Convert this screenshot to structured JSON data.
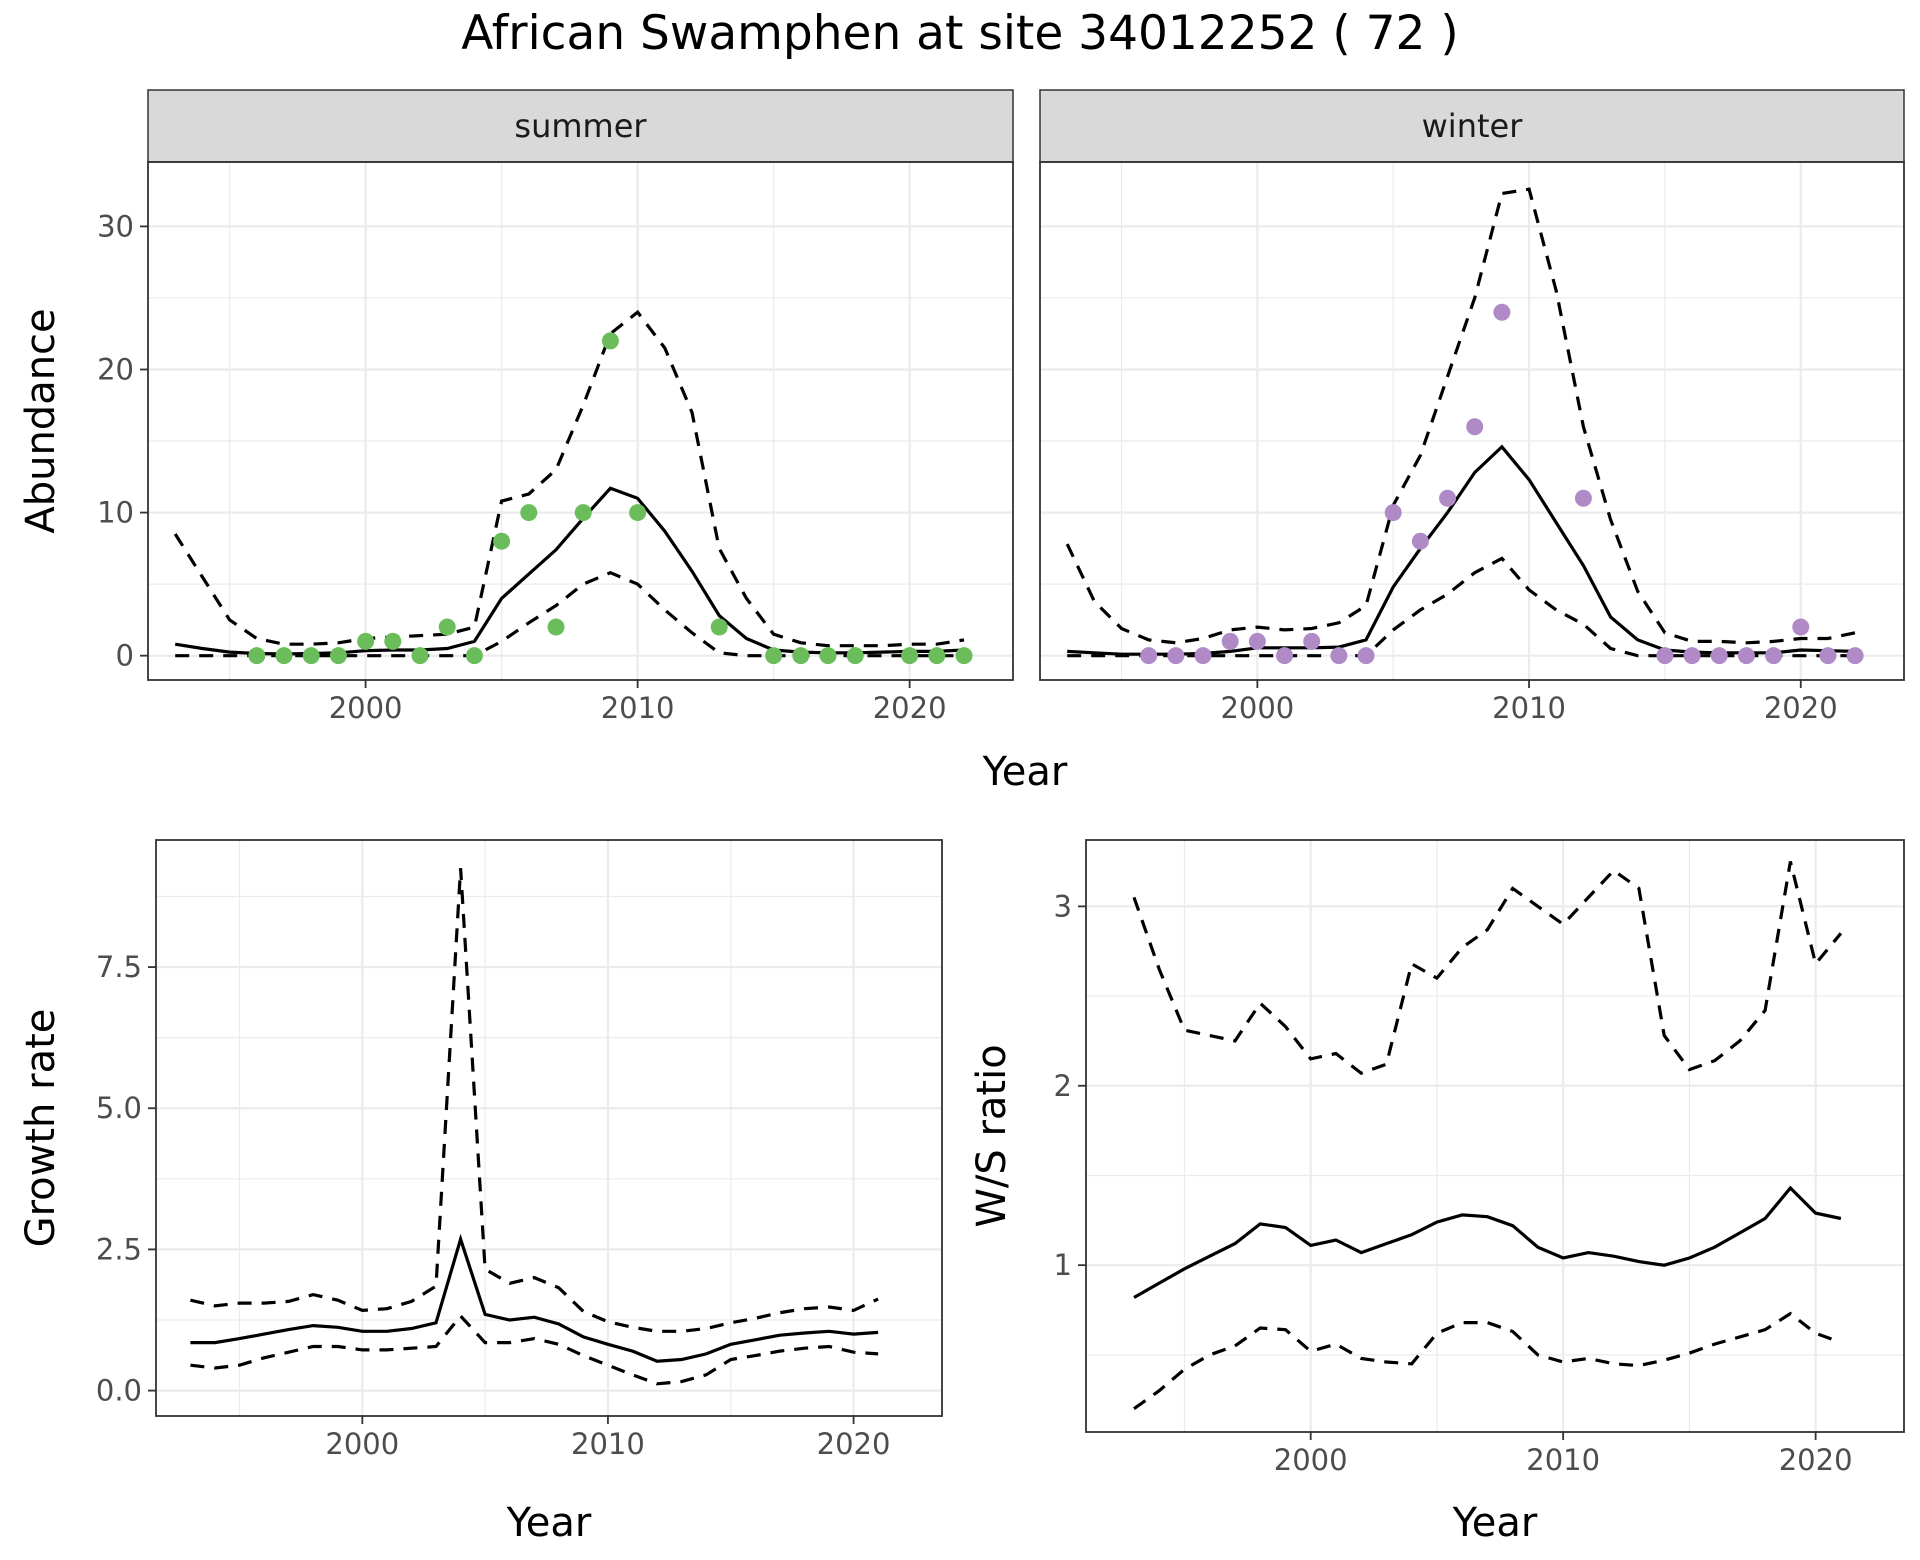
{
  "title": "African Swamphen at site 34012252 ( 72 )",
  "chart_data": [
    {
      "type": "line",
      "panel": "summer",
      "xlabel": "Year",
      "ylabel": "Abundance",
      "xlim": [
        1992,
        2023.8
      ],
      "ylim": [
        -1.7,
        34.5
      ],
      "xticks": [
        2000,
        2010,
        2020
      ],
      "yticks": [
        0,
        10,
        20,
        30
      ],
      "grid": true,
      "point_color": "#6ABD5A",
      "observed": {
        "x": [
          1996,
          1997,
          1998,
          1999,
          2000,
          2001,
          2002,
          2003,
          2004,
          2005,
          2006,
          2007,
          2008,
          2009,
          2010,
          2013,
          2015,
          2016,
          2017,
          2018,
          2020,
          2021,
          2022
        ],
        "y": [
          0,
          0,
          0,
          0,
          1,
          1,
          0,
          2,
          0,
          8,
          10,
          2,
          10,
          22,
          10,
          2,
          0,
          0,
          0,
          0,
          0,
          0,
          0
        ]
      },
      "fitted": {
        "x": [
          1993,
          1994,
          1995,
          1996,
          1997,
          1998,
          1999,
          2000,
          2001,
          2002,
          2003,
          2004,
          2005,
          2006,
          2007,
          2008,
          2009,
          2010,
          2011,
          2012,
          2013,
          2014,
          2015,
          2016,
          2017,
          2018,
          2019,
          2020,
          2021,
          2022
        ],
        "mean": [
          0.8,
          0.5,
          0.25,
          0.15,
          0.12,
          0.15,
          0.2,
          0.35,
          0.4,
          0.4,
          0.5,
          1.0,
          4.0,
          5.7,
          7.4,
          9.6,
          11.7,
          11.0,
          8.7,
          5.9,
          2.8,
          1.2,
          0.4,
          0.25,
          0.2,
          0.2,
          0.25,
          0.3,
          0.3,
          0.4
        ],
        "upper": [
          8.5,
          5.5,
          2.5,
          1.2,
          0.8,
          0.8,
          0.9,
          1.2,
          1.3,
          1.4,
          1.5,
          2.0,
          10.8,
          11.3,
          13.0,
          17.5,
          22.5,
          24.0,
          21.5,
          17.0,
          7.5,
          4.0,
          1.5,
          0.9,
          0.7,
          0.7,
          0.7,
          0.8,
          0.8,
          1.1
        ],
        "lower": [
          0.0,
          0.0,
          0.0,
          0.0,
          0.0,
          0.0,
          0.0,
          0.0,
          0.0,
          0.0,
          0.0,
          0.0,
          1.0,
          2.3,
          3.5,
          5.0,
          5.8,
          5.0,
          3.2,
          1.6,
          0.2,
          0.0,
          0.0,
          0.0,
          0.0,
          0.0,
          0.0,
          0.0,
          0.0,
          0.0
        ]
      }
    },
    {
      "type": "line",
      "panel": "winter",
      "xlabel": "Year",
      "ylabel": "Abundance",
      "xlim": [
        1992,
        2023.8
      ],
      "ylim": [
        -1.7,
        34.5
      ],
      "xticks": [
        2000,
        2010,
        2020
      ],
      "yticks": [
        0,
        10,
        20,
        30
      ],
      "grid": true,
      "point_color": "#B08AC6",
      "observed": {
        "x": [
          1996,
          1997,
          1998,
          1999,
          2000,
          2001,
          2002,
          2003,
          2004,
          2005,
          2006,
          2007,
          2008,
          2009,
          2012,
          2015,
          2016,
          2017,
          2018,
          2019,
          2020,
          2021,
          2022
        ],
        "y": [
          0,
          0,
          0,
          1,
          1,
          0,
          1,
          0,
          0,
          10,
          8,
          11,
          16,
          24,
          11,
          0,
          0,
          0,
          0,
          0,
          2,
          0,
          0
        ]
      },
      "fitted": {
        "x": [
          1993,
          1994,
          1995,
          1996,
          1997,
          1998,
          1999,
          2000,
          2001,
          2002,
          2003,
          2004,
          2005,
          2006,
          2007,
          2008,
          2009,
          2010,
          2011,
          2012,
          2013,
          2014,
          2015,
          2016,
          2017,
          2018,
          2019,
          2020,
          2021,
          2022
        ],
        "mean": [
          0.3,
          0.2,
          0.1,
          0.1,
          0.1,
          0.15,
          0.3,
          0.55,
          0.55,
          0.55,
          0.6,
          1.1,
          4.8,
          7.5,
          10.0,
          12.8,
          14.6,
          12.3,
          9.3,
          6.3,
          2.7,
          1.1,
          0.4,
          0.25,
          0.2,
          0.2,
          0.2,
          0.4,
          0.35,
          0.3
        ],
        "upper": [
          7.8,
          3.8,
          1.9,
          1.1,
          0.9,
          1.2,
          1.8,
          2.0,
          1.8,
          1.9,
          2.3,
          3.5,
          10.5,
          14.0,
          19.5,
          25.0,
          32.3,
          32.6,
          25.5,
          16.0,
          9.5,
          4.5,
          1.6,
          1.0,
          1.0,
          0.9,
          1.0,
          1.2,
          1.2,
          1.6
        ],
        "lower": [
          0.0,
          0.0,
          0.0,
          0.0,
          0.0,
          0.0,
          0.0,
          0.0,
          0.0,
          0.0,
          0.0,
          0.0,
          1.8,
          3.2,
          4.3,
          5.8,
          6.8,
          4.6,
          3.2,
          2.2,
          0.5,
          0.0,
          0.0,
          0.0,
          0.0,
          0.0,
          0.0,
          0.0,
          0.0,
          0.0
        ]
      }
    },
    {
      "type": "line",
      "panel": "growth",
      "xlabel": "Year",
      "ylabel": "Growth rate",
      "xlim": [
        1991.6,
        2023.6
      ],
      "ylim": [
        -0.45,
        9.75
      ],
      "xticks": [
        2000,
        2010,
        2020
      ],
      "yticks": [
        0.0,
        2.5,
        5.0,
        7.5
      ],
      "ytick_labels": [
        "0.0",
        "2.5",
        "5.0",
        "7.5"
      ],
      "grid": true,
      "fitted": {
        "x": [
          1993,
          1994,
          1995,
          1996,
          1997,
          1998,
          1999,
          2000,
          2001,
          2002,
          2003,
          2004,
          2005,
          2006,
          2007,
          2008,
          2009,
          2010,
          2011,
          2012,
          2013,
          2014,
          2015,
          2016,
          2017,
          2018,
          2019,
          2020,
          2021
        ],
        "mean": [
          0.85,
          0.85,
          0.92,
          1.0,
          1.08,
          1.15,
          1.12,
          1.05,
          1.05,
          1.1,
          1.2,
          2.68,
          1.35,
          1.25,
          1.3,
          1.18,
          0.95,
          0.82,
          0.7,
          0.52,
          0.55,
          0.65,
          0.82,
          0.9,
          0.98,
          1.02,
          1.05,
          1.0,
          1.03
        ],
        "upper": [
          1.6,
          1.5,
          1.55,
          1.55,
          1.58,
          1.7,
          1.6,
          1.42,
          1.45,
          1.58,
          1.85,
          9.25,
          2.15,
          1.9,
          2.0,
          1.82,
          1.4,
          1.22,
          1.12,
          1.05,
          1.05,
          1.1,
          1.2,
          1.28,
          1.38,
          1.45,
          1.48,
          1.42,
          1.62
        ],
        "lower": [
          0.45,
          0.4,
          0.45,
          0.58,
          0.68,
          0.78,
          0.78,
          0.72,
          0.72,
          0.75,
          0.78,
          1.32,
          0.85,
          0.85,
          0.92,
          0.82,
          0.62,
          0.45,
          0.28,
          0.12,
          0.16,
          0.28,
          0.55,
          0.62,
          0.7,
          0.75,
          0.78,
          0.68,
          0.65
        ]
      }
    },
    {
      "type": "line",
      "panel": "ratio",
      "xlabel": "Year",
      "ylabel": "W/S ratio",
      "xlim": [
        1991.1,
        2023.5
      ],
      "ylim": [
        0.07,
        3.37
      ],
      "xticks": [
        2000,
        2010,
        2020
      ],
      "yticks": [
        1,
        2,
        3
      ],
      "grid": true,
      "fitted": {
        "x": [
          1993,
          1994,
          1995,
          1996,
          1997,
          1998,
          1999,
          2000,
          2001,
          2002,
          2003,
          2004,
          2005,
          2006,
          2007,
          2008,
          2009,
          2010,
          2011,
          2012,
          2013,
          2014,
          2015,
          2016,
          2017,
          2018,
          2019,
          2020,
          2021
        ],
        "mean": [
          0.82,
          0.9,
          0.98,
          1.05,
          1.12,
          1.23,
          1.21,
          1.11,
          1.14,
          1.07,
          1.12,
          1.17,
          1.24,
          1.28,
          1.27,
          1.22,
          1.1,
          1.04,
          1.07,
          1.05,
          1.02,
          1.0,
          1.04,
          1.1,
          1.18,
          1.26,
          1.43,
          1.29,
          1.26
        ],
        "upper": [
          3.05,
          2.65,
          2.31,
          2.28,
          2.25,
          2.46,
          2.33,
          2.15,
          2.18,
          2.07,
          2.12,
          2.68,
          2.6,
          2.77,
          2.87,
          3.1,
          3.0,
          2.9,
          3.05,
          3.2,
          3.1,
          2.28,
          2.09,
          2.14,
          2.25,
          2.42,
          3.25,
          2.68,
          2.85
        ],
        "lower": [
          0.2,
          0.3,
          0.42,
          0.5,
          0.55,
          0.65,
          0.64,
          0.52,
          0.56,
          0.48,
          0.46,
          0.45,
          0.62,
          0.68,
          0.68,
          0.63,
          0.5,
          0.46,
          0.48,
          0.45,
          0.44,
          0.47,
          0.51,
          0.56,
          0.6,
          0.64,
          0.73,
          0.62,
          0.57
        ]
      }
    }
  ]
}
